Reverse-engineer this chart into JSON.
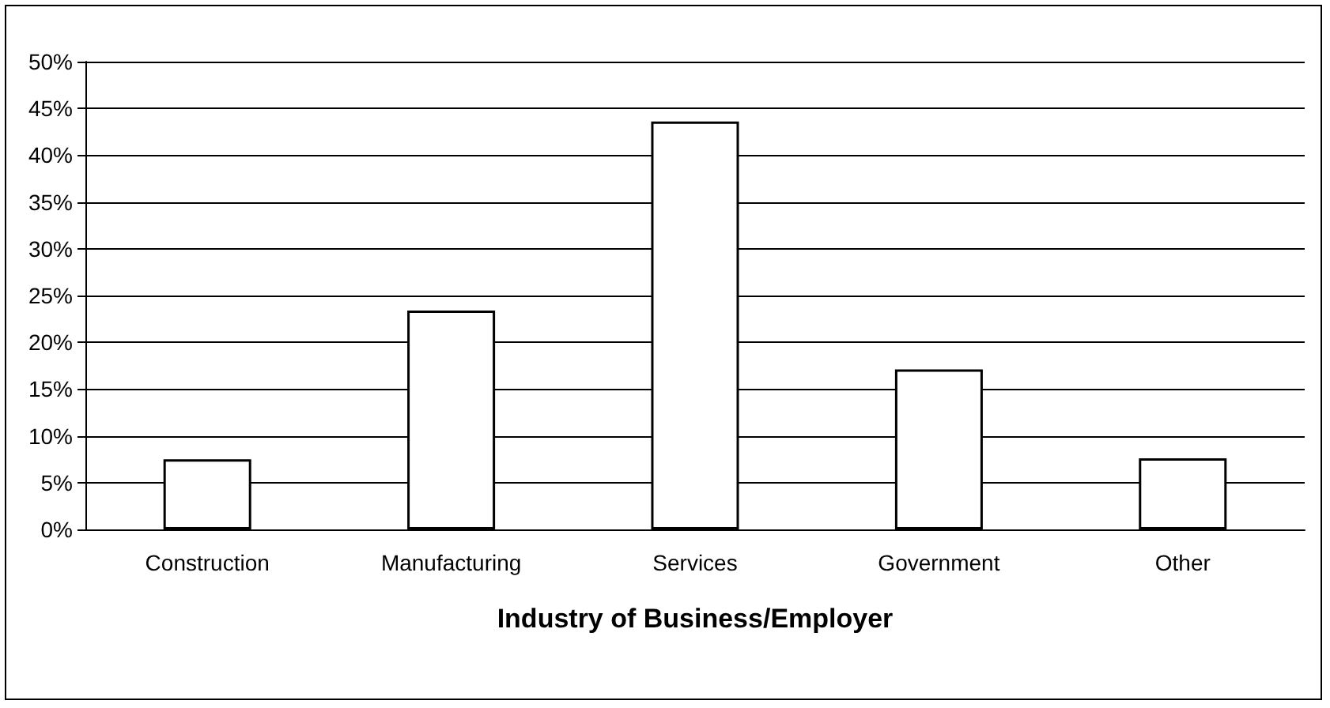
{
  "chart_data": {
    "type": "bar",
    "xlabel": "Industry of Business/Employer",
    "categories": [
      "Construction",
      "Manufacturing",
      "Services",
      "Government",
      "Other"
    ],
    "values": [
      7.5,
      23.4,
      43.6,
      17.1,
      7.6
    ],
    "color": "#ffffff",
    "ylim": [
      0,
      50
    ],
    "yticks": [
      {
        "value": 0,
        "label": "0%"
      },
      {
        "value": 5,
        "label": "5%"
      },
      {
        "value": 10,
        "label": "10%"
      },
      {
        "value": 15,
        "label": "15%"
      },
      {
        "value": 20,
        "label": "20%"
      },
      {
        "value": 25,
        "label": "25%"
      },
      {
        "value": 30,
        "label": "30%"
      },
      {
        "value": 35,
        "label": "35%"
      },
      {
        "value": 40,
        "label": "40%"
      },
      {
        "value": 45,
        "label": "45%"
      },
      {
        "value": 50,
        "label": "50%"
      }
    ],
    "grid": "y"
  }
}
